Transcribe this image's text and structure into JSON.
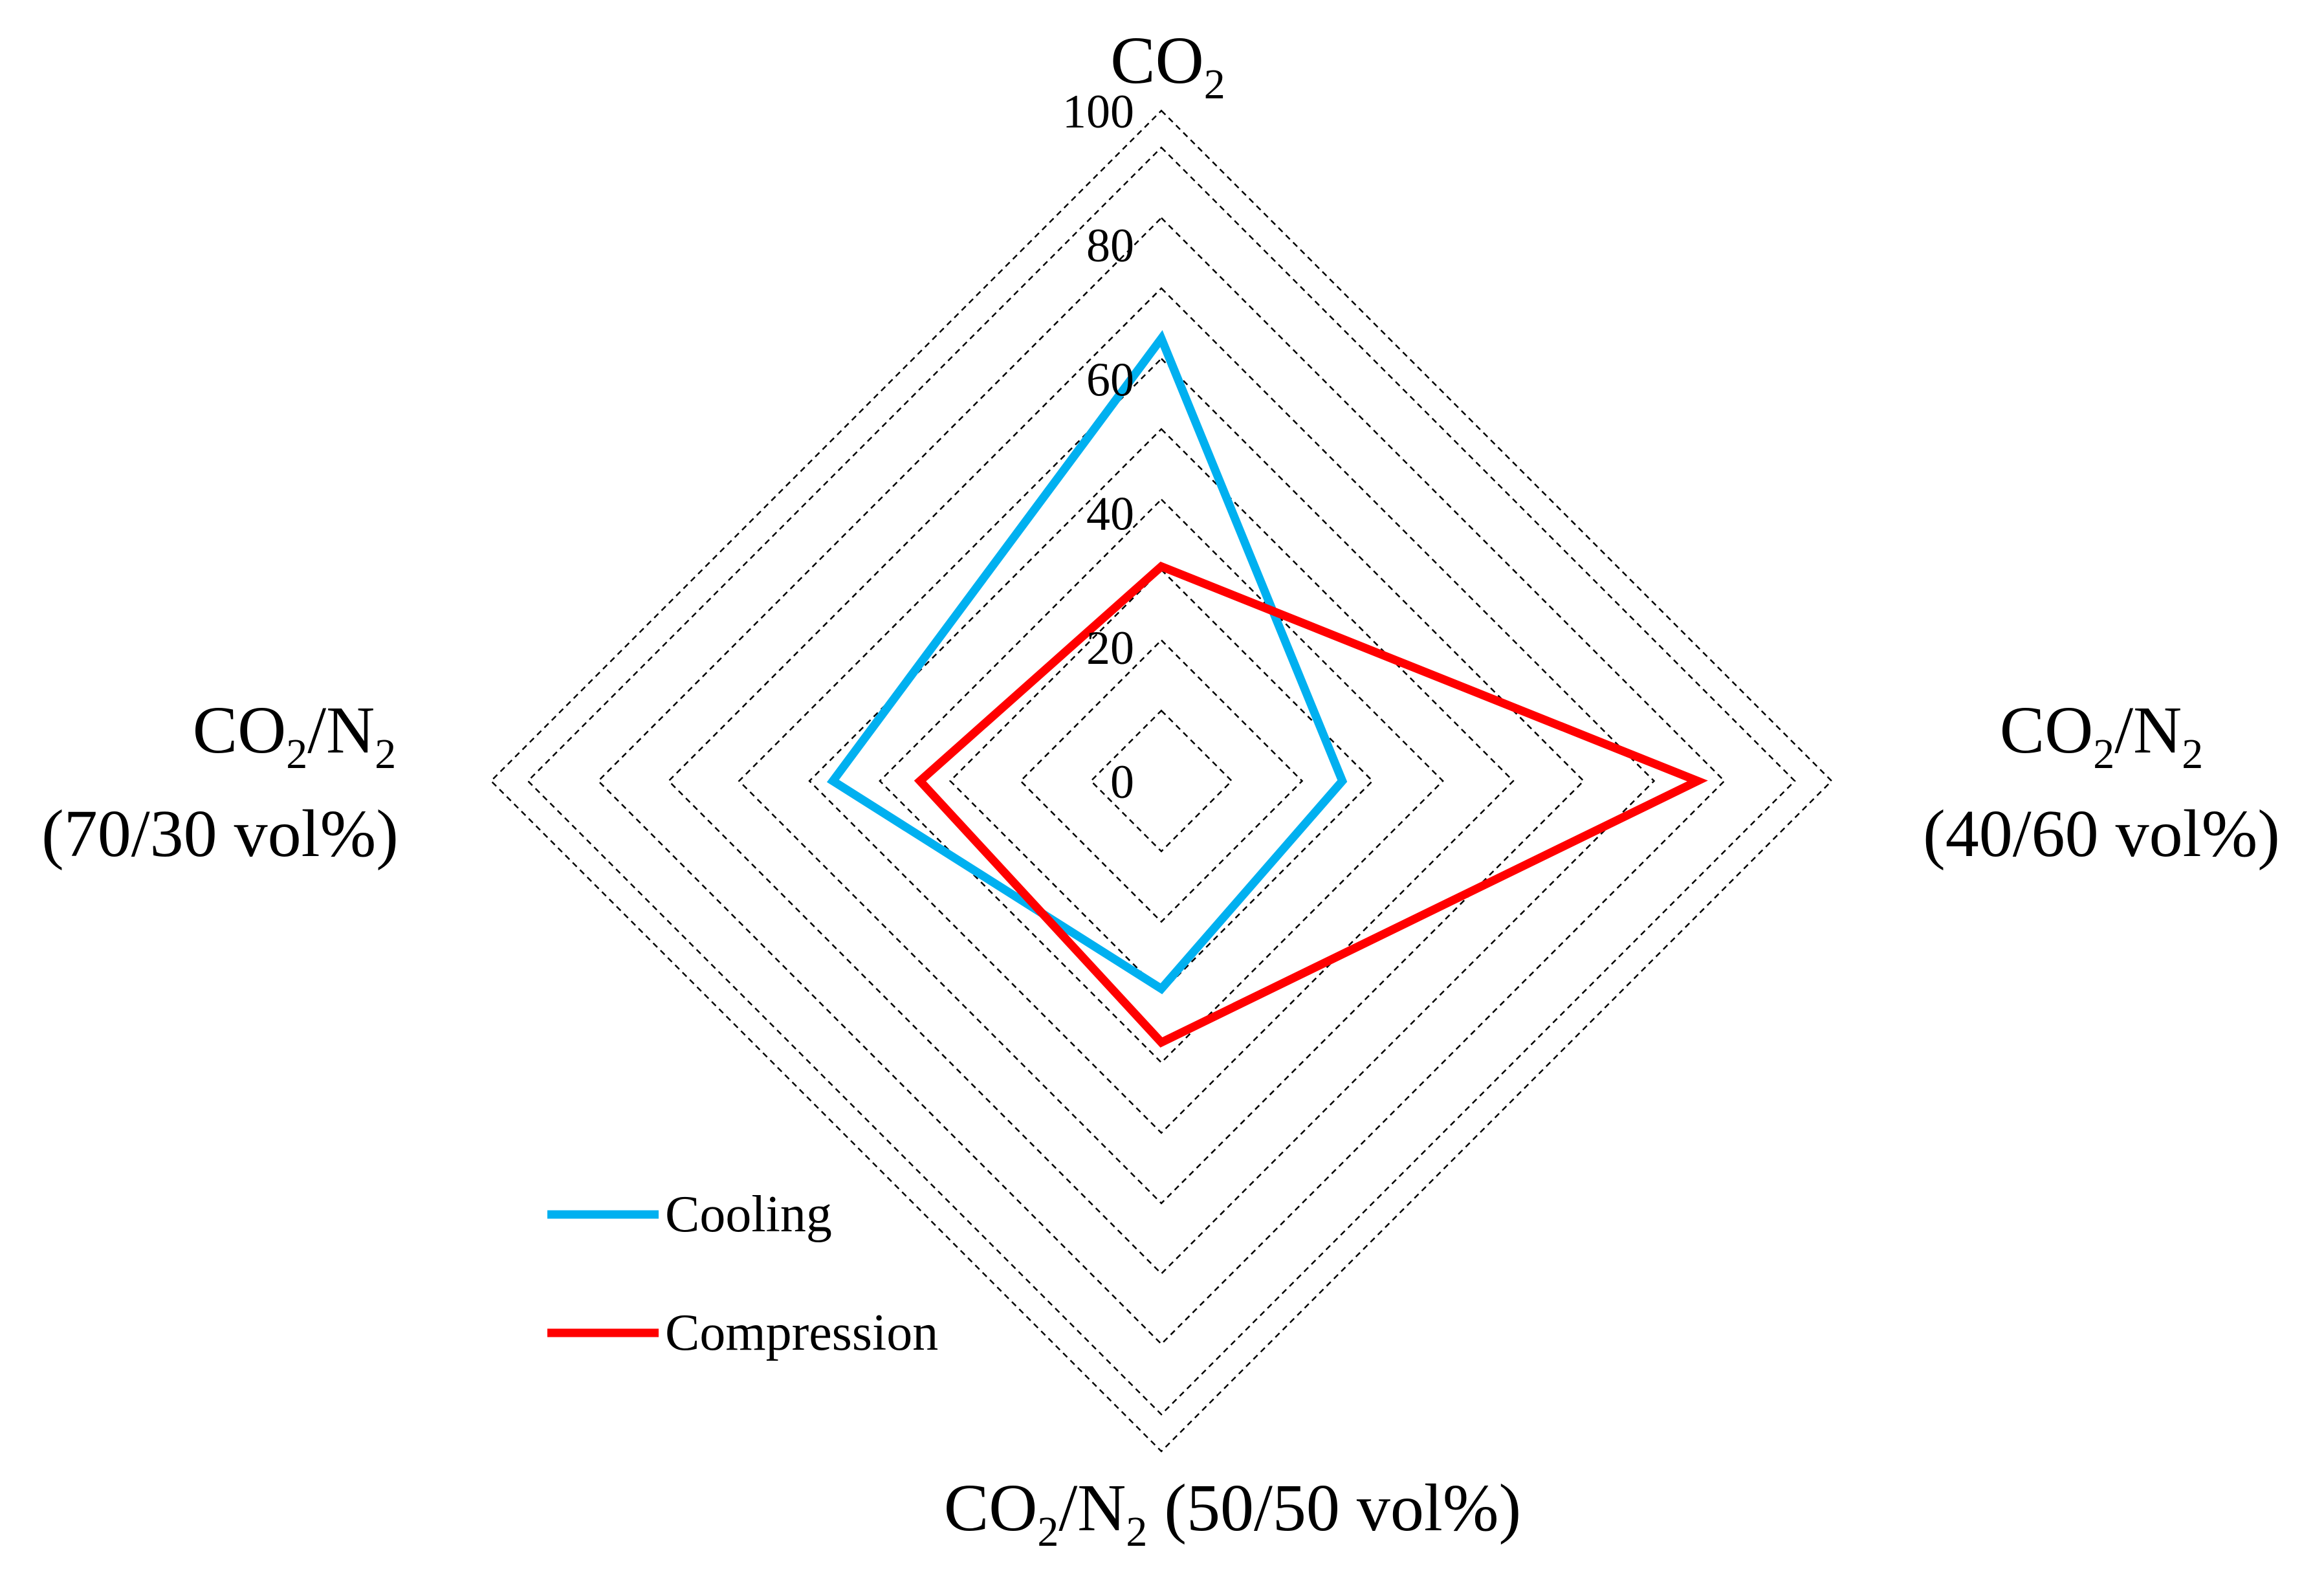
{
  "chart_data": {
    "type": "radar",
    "title": "",
    "axes": [
      {
        "label": "CO2",
        "base": "CO",
        "sub": "2",
        "tail": ""
      },
      {
        "label": "CO2/N2 (40/60 vol%)",
        "base": "CO",
        "sub": "2",
        "tail": "/N",
        "sub2": "2",
        "line2": "(40/60 vol%)"
      },
      {
        "label": "CO2/N2 (50/50 vol%)",
        "base": "CO",
        "sub": "2",
        "tail": "/N",
        "sub2": "2",
        "line2": "(50/50 vol%)"
      },
      {
        "label": "CO2/N2 (70/30 vol%)",
        "base": "CO",
        "sub": "2",
        "tail": "/N",
        "sub2": "2",
        "line2": "(70/30 vol%)"
      }
    ],
    "ticks": [
      "0",
      "20",
      "40",
      "60",
      "80",
      "100"
    ],
    "range": [
      0,
      100
    ],
    "grid": true,
    "grid_style": "dashed",
    "legend_position": "bottom-left",
    "series": [
      {
        "name": "Cooling",
        "color": "#00b0f0",
        "values": [
          66,
          27,
          31,
          49
        ]
      },
      {
        "name": "Compression",
        "color": "#ff0000",
        "values": [
          32,
          80,
          39,
          36
        ]
      }
    ]
  }
}
